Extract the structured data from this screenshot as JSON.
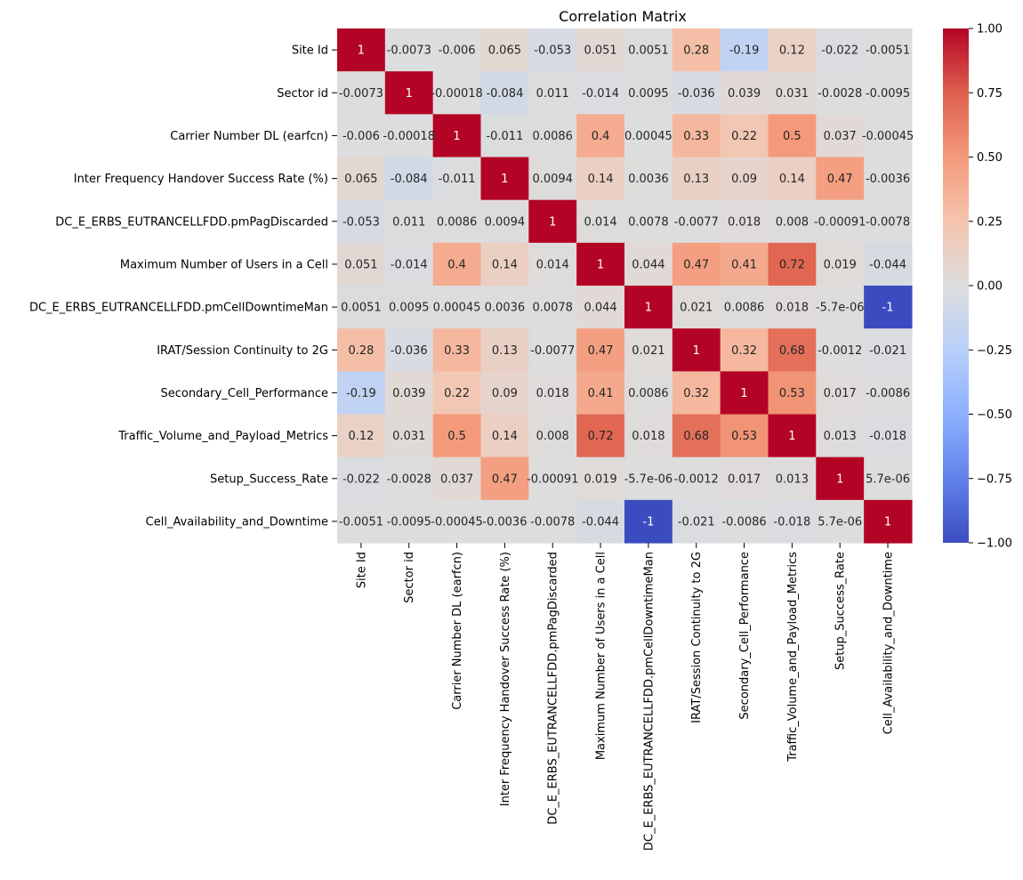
{
  "chart_data": {
    "type": "heatmap",
    "title": "Correlation Matrix",
    "xlabel": "",
    "ylabel": "",
    "colormap": "coolwarm",
    "vmin": -1,
    "vmax": 1,
    "grid": false,
    "legend": "colorbar-right",
    "colorbar_ticks": [
      "1.00",
      "0.75",
      "0.50",
      "0.25",
      "0.00",
      "−0.25",
      "−0.50",
      "−0.75",
      "−1.00"
    ],
    "colorbar_tick_values": [
      1,
      0.75,
      0.5,
      0.25,
      0,
      -0.25,
      -0.5,
      -0.75,
      -1
    ],
    "row_labels": [
      "Site Id",
      "Sector id",
      "Carrier Number DL (earfcn)",
      "Inter Frequency Handover Success Rate (%)",
      "DC_E_ERBS_EUTRANCELLFDD.pmPagDiscarded",
      "Maximum Number of Users in a Cell",
      "DC_E_ERBS_EUTRANCELLFDD.pmCellDowntimeMan",
      "IRAT/Session Continuity to 2G",
      "Secondary_Cell_Performance",
      "Traffic_Volume_and_Payload_Metrics",
      "Setup_Success_Rate",
      "Cell_Availability_and_Downtime"
    ],
    "col_labels": [
      "Site Id",
      "Sector id",
      "Carrier Number DL (earfcn)",
      "Inter Frequency Handover Success Rate (%)",
      "DC_E_ERBS_EUTRANCELLFDD.pmPagDiscarded",
      "Maximum Number of Users in a Cell",
      "DC_E_ERBS_EUTRANCELLFDD.pmCellDowntimeMan",
      "IRAT/Session Continuity to 2G",
      "Secondary_Cell_Performance",
      "Traffic_Volume_and_Payload_Metrics",
      "Setup_Success_Rate",
      "Cell_Availability_and_Downtime"
    ],
    "values": [
      [
        1,
        -0.0073,
        -0.006,
        0.065,
        -0.053,
        0.051,
        0.0051,
        0.28,
        -0.19,
        0.12,
        -0.022,
        -0.0051
      ],
      [
        -0.0073,
        1,
        -0.00018,
        -0.084,
        0.011,
        -0.014,
        0.0095,
        -0.036,
        0.039,
        0.031,
        -0.0028,
        -0.0095
      ],
      [
        -0.006,
        -0.00018,
        1,
        -0.011,
        0.0086,
        0.4,
        0.00045,
        0.33,
        0.22,
        0.5,
        0.037,
        -0.00045
      ],
      [
        0.065,
        -0.084,
        -0.011,
        1,
        0.0094,
        0.14,
        0.0036,
        0.13,
        0.09,
        0.14,
        0.47,
        -0.0036
      ],
      [
        -0.053,
        0.011,
        0.0086,
        0.0094,
        1,
        0.014,
        0.0078,
        -0.0077,
        0.018,
        0.008,
        -0.00091,
        -0.0078
      ],
      [
        0.051,
        -0.014,
        0.4,
        0.14,
        0.014,
        1,
        0.044,
        0.47,
        0.41,
        0.72,
        0.019,
        -0.044
      ],
      [
        0.0051,
        0.0095,
        0.00045,
        0.0036,
        0.0078,
        0.044,
        1,
        0.021,
        0.0086,
        0.018,
        -5.7e-06,
        -1
      ],
      [
        0.28,
        -0.036,
        0.33,
        0.13,
        -0.0077,
        0.47,
        0.021,
        1,
        0.32,
        0.68,
        -0.0012,
        -0.021
      ],
      [
        -0.19,
        0.039,
        0.22,
        0.09,
        0.018,
        0.41,
        0.0086,
        0.32,
        1,
        0.53,
        0.017,
        -0.0086
      ],
      [
        0.12,
        0.031,
        0.5,
        0.14,
        0.008,
        0.72,
        0.018,
        0.68,
        0.53,
        1,
        0.013,
        -0.018
      ],
      [
        -0.022,
        -0.0028,
        0.037,
        0.47,
        -0.00091,
        0.019,
        -5.7e-06,
        -0.0012,
        0.017,
        0.013,
        1,
        5.7e-06
      ],
      [
        -0.0051,
        -0.0095,
        -0.00045,
        -0.0036,
        -0.0078,
        -0.044,
        -1,
        -0.021,
        -0.0086,
        -0.018,
        5.7e-06,
        1
      ]
    ],
    "annotations": [
      [
        "1",
        "-0.0073",
        "-0.006",
        "0.065",
        "-0.053",
        "0.051",
        "0.0051",
        "0.28",
        "-0.19",
        "0.12",
        "-0.022",
        "-0.0051"
      ],
      [
        "-0.0073",
        "1",
        "-0.00018",
        "-0.084",
        "0.011",
        "-0.014",
        "0.0095",
        "-0.036",
        "0.039",
        "0.031",
        "-0.0028",
        "-0.0095"
      ],
      [
        "-0.006",
        "-0.00018",
        "1",
        "-0.011",
        "0.0086",
        "0.4",
        "0.00045",
        "0.33",
        "0.22",
        "0.5",
        "0.037",
        "-0.00045"
      ],
      [
        "0.065",
        "-0.084",
        "-0.011",
        "1",
        "0.0094",
        "0.14",
        "0.0036",
        "0.13",
        "0.09",
        "0.14",
        "0.47",
        "-0.0036"
      ],
      [
        "-0.053",
        "0.011",
        "0.0086",
        "0.0094",
        "1",
        "0.014",
        "0.0078",
        "-0.0077",
        "0.018",
        "0.008",
        "-0.00091",
        "-0.0078"
      ],
      [
        "0.051",
        "-0.014",
        "0.4",
        "0.14",
        "0.014",
        "1",
        "0.044",
        "0.47",
        "0.41",
        "0.72",
        "0.019",
        "-0.044"
      ],
      [
        "0.0051",
        "0.0095",
        "0.00045",
        "0.0036",
        "0.0078",
        "0.044",
        "1",
        "0.021",
        "0.0086",
        "0.018",
        "-5.7e-06",
        "-1"
      ],
      [
        "0.28",
        "-0.036",
        "0.33",
        "0.13",
        "-0.0077",
        "0.47",
        "0.021",
        "1",
        "0.32",
        "0.68",
        "-0.0012",
        "-0.021"
      ],
      [
        "-0.19",
        "0.039",
        "0.22",
        "0.09",
        "0.018",
        "0.41",
        "0.0086",
        "0.32",
        "1",
        "0.53",
        "0.017",
        "-0.0086"
      ],
      [
        "0.12",
        "0.031",
        "0.5",
        "0.14",
        "0.008",
        "0.72",
        "0.018",
        "0.68",
        "0.53",
        "1",
        "0.013",
        "-0.018"
      ],
      [
        "-0.022",
        "-0.0028",
        "0.037",
        "0.47",
        "-0.00091",
        "0.019",
        "-5.7e-06",
        "-0.0012",
        "0.017",
        "0.013",
        "1",
        "5.7e-06"
      ],
      [
        "-0.0051",
        "-0.0095",
        "-0.00045",
        "-0.0036",
        "-0.0078",
        "-0.044",
        "-1",
        "-0.021",
        "-0.0086",
        "-0.018",
        "5.7e-06",
        "1"
      ]
    ]
  }
}
